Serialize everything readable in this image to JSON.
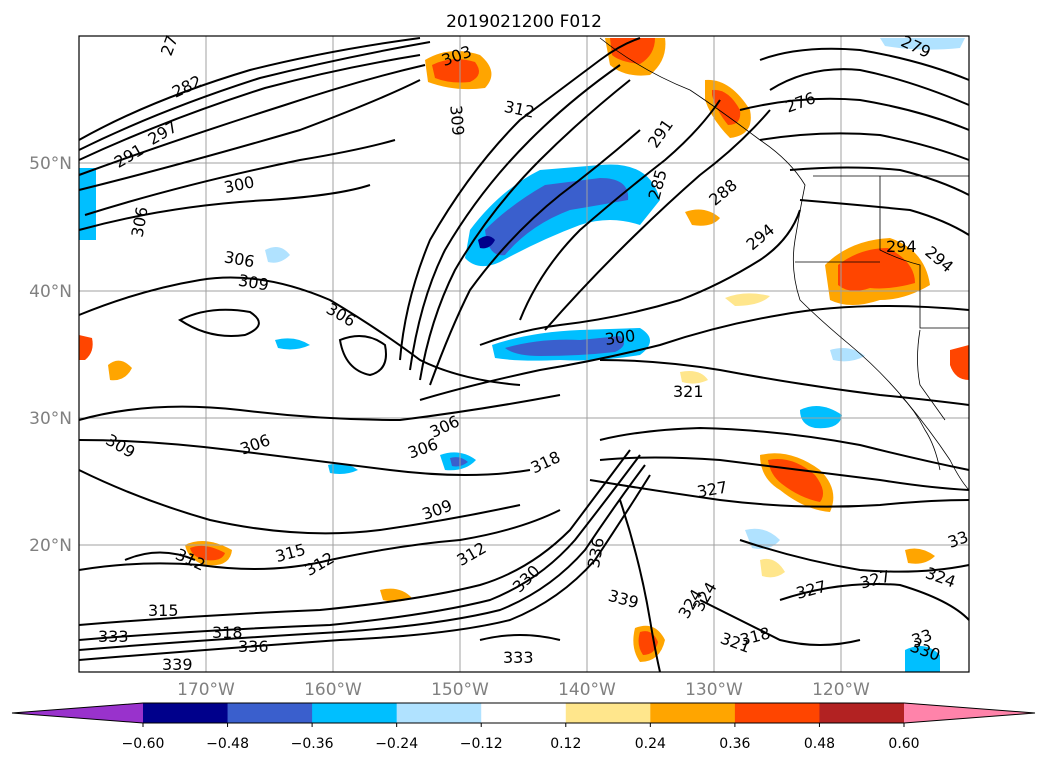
{
  "title": "2019021200 F012",
  "lat_labels": [
    "50°N",
    "40°N",
    "30°N",
    "20°N"
  ],
  "lon_labels": [
    "170°W",
    "160°W",
    "150°W",
    "140°W",
    "130°W",
    "120°W"
  ],
  "colorbar": {
    "tick_labels": [
      "−0.60",
      "−0.48",
      "−0.36",
      "−0.24",
      "−0.12",
      "0.12",
      "0.24",
      "0.36",
      "0.48",
      "0.60"
    ],
    "colors": [
      "#9932cc",
      "#00008b",
      "#3a5fcd",
      "#00bfff",
      "#b0e2ff",
      "#ffffff",
      "#ffe68c",
      "#ffa500",
      "#ff4500",
      "#b22222",
      "#ff83aa"
    ]
  },
  "contour_labels": [
    "27",
    "282",
    "303",
    "309",
    "312",
    "291",
    "276",
    "279",
    "297",
    "291",
    "300",
    "306",
    "285",
    "288",
    "294",
    "294",
    "294",
    "306",
    "309",
    "306",
    "300",
    "321",
    "306",
    "306",
    "318",
    "309",
    "327",
    "309",
    "315",
    "312",
    "312",
    "312",
    "336",
    "330",
    "339",
    "324",
    "327",
    "327",
    "33",
    "315",
    "318",
    "336",
    "333",
    "321",
    "318",
    "33",
    "330",
    "324",
    "339",
    "333",
    "306",
    "324"
  ],
  "map_extent": {
    "lon_min": -180,
    "lon_max": -110,
    "lat_min": 10,
    "lat_max": 60
  },
  "field_description": "black contours of potential temperature with shaded negative (blue) and positive (orange/red) anomalies"
}
